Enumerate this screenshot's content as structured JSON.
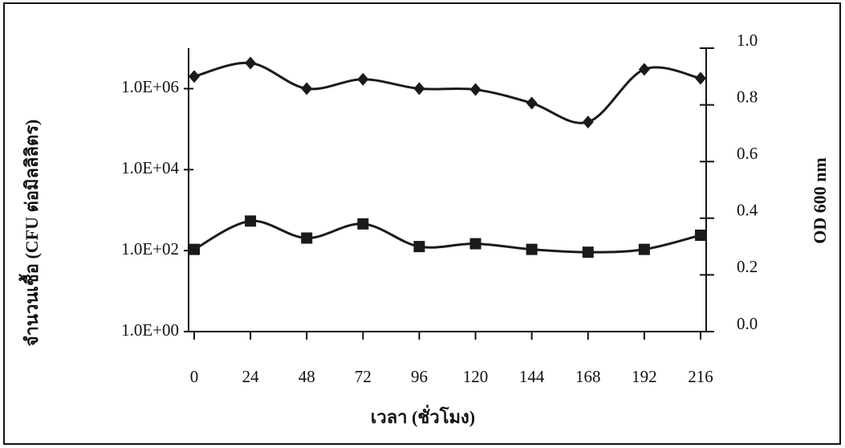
{
  "chart_data": {
    "type": "line",
    "x_label": "เวลา (ชั่วโมง)",
    "y_label": "จำนวนเชื้อ (CFU ต่อมิลลิลิตร)",
    "y2_label": "OD 600 nm",
    "categories": [
      "0",
      "24",
      "48",
      "72",
      "96",
      "120",
      "144",
      "168",
      "192",
      "216"
    ],
    "ylim": [
      1,
      10000000
    ],
    "ylog": true,
    "yticks": [
      {
        "value": 1,
        "label": "1.0E+00"
      },
      {
        "value": 100,
        "label": "1.0E+02"
      },
      {
        "value": 10000,
        "label": "1.0E+04"
      },
      {
        "value": 1000000,
        "label": "1.0E+06"
      }
    ],
    "y2lim": [
      0,
      1
    ],
    "y2ticks": [
      {
        "value": 0,
        "label": "0.0"
      },
      0.2,
      0.4,
      0.6,
      0.8,
      {
        "value": 1,
        "label": "1.0"
      }
    ],
    "series": [
      {
        "color": "#1a1a1a",
        "marker": "diamond",
        "values": [
          2000000,
          4300000,
          1000000,
          1700000,
          1000000,
          950000,
          440000,
          150000,
          3000000,
          1800000
        ]
      },
      {
        "color": "#1a1a1a",
        "marker": "square",
        "axis": "y2",
        "values": [
          0.29,
          0.39,
          0.33,
          0.38,
          0.3,
          0.31,
          0.29,
          0.28,
          0.29,
          0.34
        ]
      }
    ]
  }
}
